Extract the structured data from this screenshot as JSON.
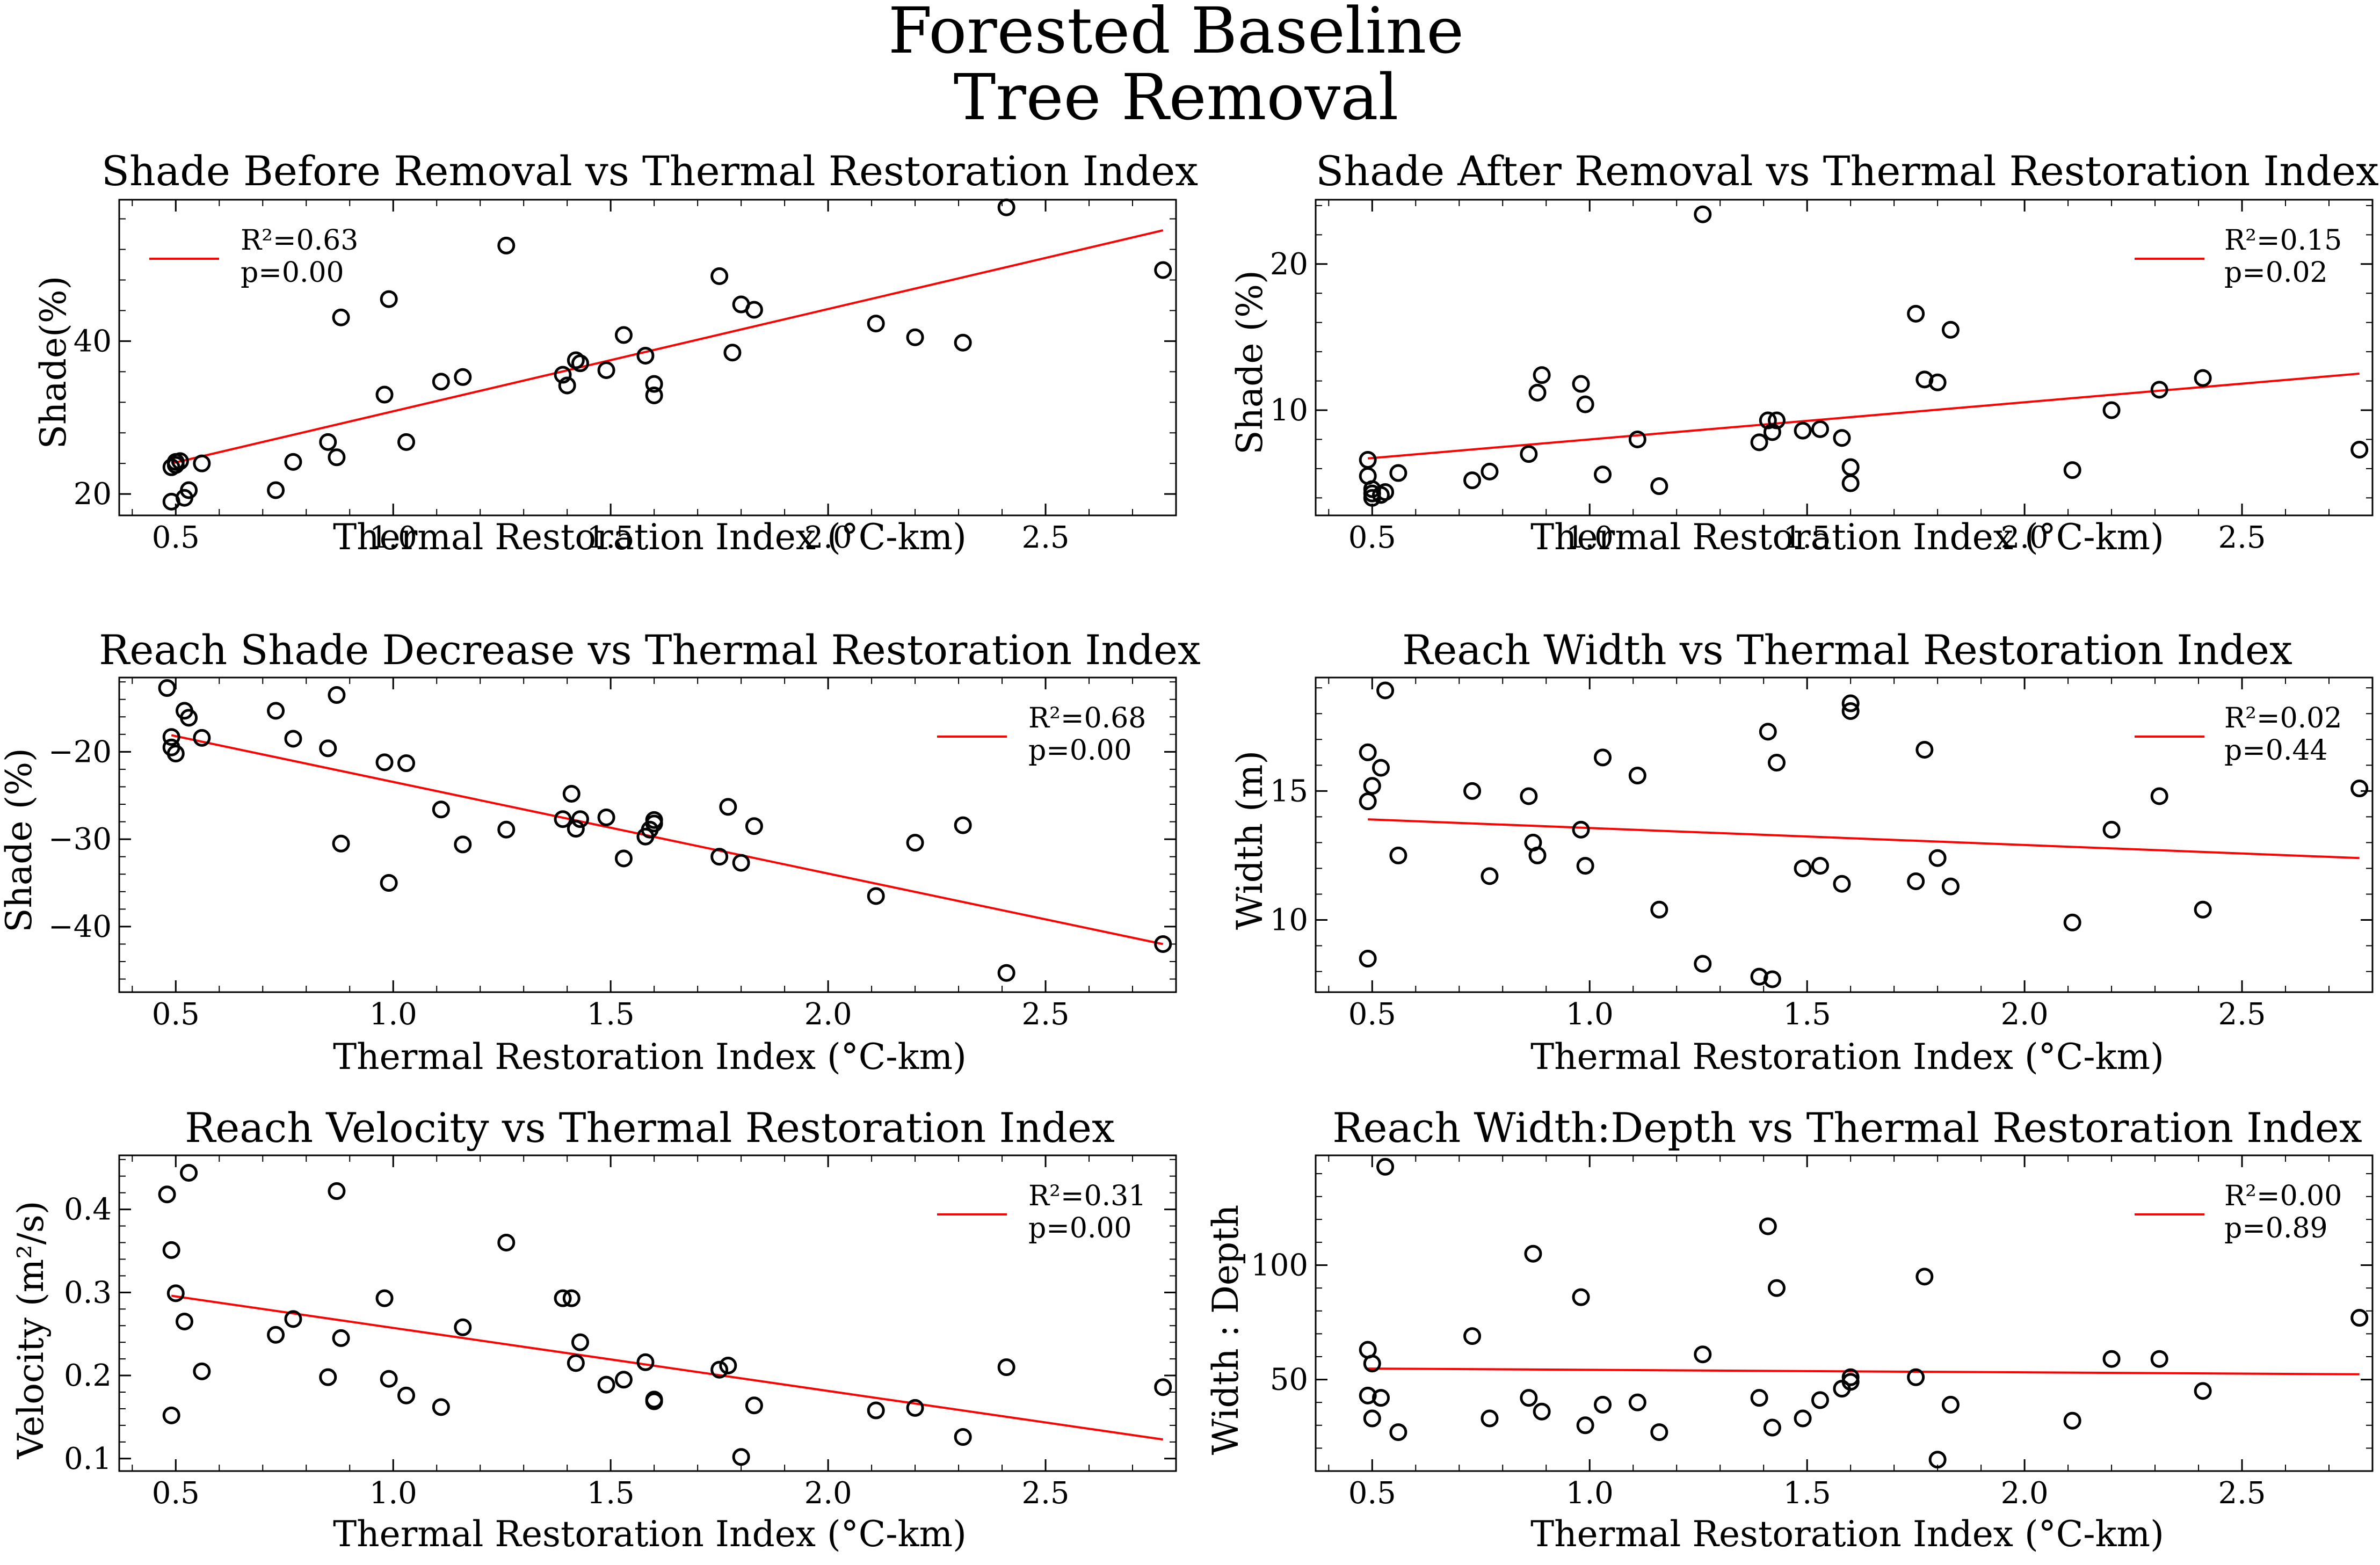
{
  "suptitle": [
    "Forested Baseline",
    "Tree Removal"
  ],
  "chart_data": [
    {
      "type": "scatter",
      "title": "Shade Before Removal vs Thermal Restoration Index",
      "xlabel": "Thermal Restoration Index (°C-km)",
      "ylabel": "Shade(%)",
      "xlim": [
        0.37,
        2.8
      ],
      "ylim": [
        17.2,
        58.5
      ],
      "xticks": [
        0.5,
        1.0,
        1.5,
        2.0,
        2.5
      ],
      "yticks": [
        20,
        40
      ],
      "legend": "upper-left",
      "fit": {
        "label": "R²=0.63",
        "p": "p=0.00",
        "x": [
          0.49,
          2.77
        ],
        "y": [
          24.0,
          54.5
        ]
      },
      "points": [
        [
          0.49,
          19
        ],
        [
          0.49,
          23.5
        ],
        [
          0.5,
          23.8
        ],
        [
          0.5,
          24.2
        ],
        [
          0.51,
          24.3
        ],
        [
          0.52,
          19.5
        ],
        [
          0.53,
          20.5
        ],
        [
          0.56,
          24
        ],
        [
          0.73,
          20.5
        ],
        [
          0.77,
          24.2
        ],
        [
          0.85,
          26.8
        ],
        [
          0.87,
          24.8
        ],
        [
          0.88,
          43.1
        ],
        [
          0.98,
          33
        ],
        [
          0.99,
          45.5
        ],
        [
          1.03,
          26.8
        ],
        [
          1.11,
          34.7
        ],
        [
          1.16,
          35.3
        ],
        [
          1.26,
          52.5
        ],
        [
          1.39,
          35.6
        ],
        [
          1.4,
          34.2
        ],
        [
          1.42,
          37.5
        ],
        [
          1.43,
          37.1
        ],
        [
          1.49,
          36.2
        ],
        [
          1.53,
          40.8
        ],
        [
          1.58,
          38.1
        ],
        [
          1.6,
          34.4
        ],
        [
          1.6,
          32.9
        ],
        [
          1.75,
          48.5
        ],
        [
          1.78,
          38.5
        ],
        [
          1.8,
          44.8
        ],
        [
          1.83,
          44.1
        ],
        [
          2.11,
          42.3
        ],
        [
          2.2,
          40.5
        ],
        [
          2.31,
          39.8
        ],
        [
          2.41,
          57.5
        ],
        [
          2.77,
          49.3
        ]
      ]
    },
    {
      "type": "scatter",
      "title": "Shade After Removal  vs Thermal Restoration Index",
      "xlabel": "Thermal Restoration Index (°C-km)",
      "ylabel": "Shade (%)",
      "xlim": [
        0.37,
        2.8
      ],
      "ylim": [
        2.8,
        24.4
      ],
      "xticks": [
        0.5,
        1.0,
        1.5,
        2.0,
        2.5
      ],
      "yticks": [
        10,
        20
      ],
      "legend": "upper-right",
      "fit": {
        "label": "R²=0.15",
        "p": "p=0.02",
        "x": [
          0.49,
          2.77
        ],
        "y": [
          6.7,
          12.5
        ]
      },
      "points": [
        [
          0.49,
          6.6
        ],
        [
          0.49,
          5.5
        ],
        [
          0.5,
          4.3
        ],
        [
          0.5,
          4.6
        ],
        [
          0.5,
          4.0
        ],
        [
          0.52,
          4.2
        ],
        [
          0.53,
          4.4
        ],
        [
          0.56,
          5.7
        ],
        [
          0.73,
          5.2
        ],
        [
          0.77,
          5.8
        ],
        [
          0.86,
          7.0
        ],
        [
          0.88,
          11.2
        ],
        [
          0.89,
          12.4
        ],
        [
          0.98,
          11.8
        ],
        [
          0.99,
          10.4
        ],
        [
          1.03,
          5.6
        ],
        [
          1.11,
          8.0
        ],
        [
          1.16,
          4.8
        ],
        [
          1.26,
          23.4
        ],
        [
          1.39,
          7.8
        ],
        [
          1.41,
          9.3
        ],
        [
          1.42,
          8.5
        ],
        [
          1.43,
          9.3
        ],
        [
          1.49,
          8.6
        ],
        [
          1.53,
          8.7
        ],
        [
          1.58,
          8.1
        ],
        [
          1.6,
          6.1
        ],
        [
          1.6,
          5.0
        ],
        [
          1.75,
          16.6
        ],
        [
          1.77,
          12.1
        ],
        [
          1.8,
          11.9
        ],
        [
          1.83,
          15.5
        ],
        [
          2.11,
          5.9
        ],
        [
          2.2,
          10.0
        ],
        [
          2.31,
          11.4
        ],
        [
          2.41,
          12.2
        ],
        [
          2.77,
          7.3
        ]
      ]
    },
    {
      "type": "scatter",
      "title": "Reach Shade Decrease vs Thermal Restoration Index",
      "xlabel": "Thermal Restoration Index (°C-km)",
      "ylabel": "Shade (%)",
      "xlim": [
        0.37,
        2.8
      ],
      "ylim": [
        -47.5,
        -11.5
      ],
      "xticks": [
        0.5,
        1.0,
        1.5,
        2.0,
        2.5
      ],
      "yticks": [
        -40,
        -30,
        -20
      ],
      "legend": "upper-right",
      "fit": {
        "label": "R²=0.68",
        "p": "p=0.00",
        "x": [
          0.49,
          2.77
        ],
        "y": [
          -18.1,
          -42.0
        ]
      },
      "points": [
        [
          0.48,
          -12.7
        ],
        [
          0.49,
          -18.3
        ],
        [
          0.49,
          -19.5
        ],
        [
          0.5,
          -20.2
        ],
        [
          0.52,
          -15.3
        ],
        [
          0.53,
          -16.1
        ],
        [
          0.56,
          -18.4
        ],
        [
          0.73,
          -15.3
        ],
        [
          0.77,
          -18.5
        ],
        [
          0.85,
          -19.6
        ],
        [
          0.87,
          -13.5
        ],
        [
          0.88,
          -30.5
        ],
        [
          0.98,
          -21.2
        ],
        [
          0.99,
          -35.0
        ],
        [
          1.03,
          -21.3
        ],
        [
          1.11,
          -26.6
        ],
        [
          1.16,
          -30.6
        ],
        [
          1.26,
          -28.9
        ],
        [
          1.39,
          -27.7
        ],
        [
          1.41,
          -24.8
        ],
        [
          1.42,
          -28.8
        ],
        [
          1.43,
          -27.7
        ],
        [
          1.49,
          -27.5
        ],
        [
          1.53,
          -32.2
        ],
        [
          1.58,
          -29.7
        ],
        [
          1.59,
          -28.9
        ],
        [
          1.6,
          -27.8
        ],
        [
          1.6,
          -28.2
        ],
        [
          1.75,
          -32.0
        ],
        [
          1.77,
          -26.3
        ],
        [
          1.8,
          -32.7
        ],
        [
          1.83,
          -28.5
        ],
        [
          2.11,
          -36.5
        ],
        [
          2.2,
          -30.4
        ],
        [
          2.31,
          -28.4
        ],
        [
          2.41,
          -45.3
        ],
        [
          2.77,
          -42.0
        ]
      ]
    },
    {
      "type": "scatter",
      "title": "Reach Width vs Thermal Restoration Index",
      "xlabel": "Thermal Restoration Index (°C-km)",
      "ylabel": "Width (m)",
      "xlim": [
        0.37,
        2.8
      ],
      "ylim": [
        7.2,
        19.4
      ],
      "xticks": [
        0.5,
        1.0,
        1.5,
        2.0,
        2.5
      ],
      "yticks": [
        10,
        15
      ],
      "legend": "upper-right",
      "fit": {
        "label": "R²=0.02",
        "p": "p=0.44",
        "x": [
          0.49,
          2.77
        ],
        "y": [
          13.9,
          12.4
        ]
      },
      "points": [
        [
          0.49,
          8.5
        ],
        [
          0.49,
          16.5
        ],
        [
          0.49,
          14.6
        ],
        [
          0.5,
          15.2
        ],
        [
          0.52,
          15.9
        ],
        [
          0.53,
          18.9
        ],
        [
          0.56,
          12.5
        ],
        [
          0.73,
          15.0
        ],
        [
          0.77,
          11.7
        ],
        [
          0.86,
          14.8
        ],
        [
          0.87,
          13.0
        ],
        [
          0.88,
          12.5
        ],
        [
          0.98,
          13.5
        ],
        [
          0.99,
          12.1
        ],
        [
          1.03,
          16.3
        ],
        [
          1.11,
          15.6
        ],
        [
          1.16,
          10.4
        ],
        [
          1.26,
          8.3
        ],
        [
          1.39,
          7.8
        ],
        [
          1.41,
          17.3
        ],
        [
          1.42,
          7.7
        ],
        [
          1.43,
          16.1
        ],
        [
          1.49,
          12.0
        ],
        [
          1.53,
          12.1
        ],
        [
          1.58,
          11.4
        ],
        [
          1.6,
          18.4
        ],
        [
          1.6,
          18.1
        ],
        [
          1.75,
          11.5
        ],
        [
          1.77,
          16.6
        ],
        [
          1.8,
          12.4
        ],
        [
          1.83,
          11.3
        ],
        [
          2.11,
          9.9
        ],
        [
          2.2,
          13.5
        ],
        [
          2.31,
          14.8
        ],
        [
          2.41,
          10.4
        ],
        [
          2.77,
          15.1
        ]
      ]
    },
    {
      "type": "scatter",
      "title": "Reach Velocity vs Thermal Restoration Index",
      "xlabel": "Thermal Restoration Index (°C-km)",
      "ylabel": "Velocity (m²/s)",
      "xlim": [
        0.37,
        2.8
      ],
      "ylim": [
        0.085,
        0.465
      ],
      "xticks": [
        0.5,
        1.0,
        1.5,
        2.0,
        2.5
      ],
      "yticks": [
        0.1,
        0.2,
        0.3,
        0.4
      ],
      "legend": "upper-right",
      "fit": {
        "label": "R²=0.31",
        "p": "p=0.00",
        "x": [
          0.49,
          2.77
        ],
        "y": [
          0.296,
          0.123
        ]
      },
      "points": [
        [
          0.48,
          0.418
        ],
        [
          0.49,
          0.351
        ],
        [
          0.49,
          0.152
        ],
        [
          0.5,
          0.299
        ],
        [
          0.52,
          0.265
        ],
        [
          0.53,
          0.444
        ],
        [
          0.56,
          0.205
        ],
        [
          0.73,
          0.249
        ],
        [
          0.77,
          0.268
        ],
        [
          0.85,
          0.198
        ],
        [
          0.87,
          0.422
        ],
        [
          0.88,
          0.245
        ],
        [
          0.98,
          0.293
        ],
        [
          0.99,
          0.196
        ],
        [
          1.03,
          0.176
        ],
        [
          1.11,
          0.162
        ],
        [
          1.16,
          0.258
        ],
        [
          1.26,
          0.36
        ],
        [
          1.39,
          0.293
        ],
        [
          1.41,
          0.293
        ],
        [
          1.42,
          0.215
        ],
        [
          1.43,
          0.24
        ],
        [
          1.49,
          0.189
        ],
        [
          1.53,
          0.195
        ],
        [
          1.58,
          0.216
        ],
        [
          1.6,
          0.171
        ],
        [
          1.6,
          0.169
        ],
        [
          1.75,
          0.207
        ],
        [
          1.77,
          0.212
        ],
        [
          1.8,
          0.102
        ],
        [
          1.83,
          0.164
        ],
        [
          2.11,
          0.158
        ],
        [
          2.2,
          0.161
        ],
        [
          2.31,
          0.126
        ],
        [
          2.41,
          0.21
        ],
        [
          2.77,
          0.186
        ]
      ]
    },
    {
      "type": "scatter",
      "title": "Reach Width:Depth vs Thermal Restoration Index",
      "xlabel": "Thermal Restoration Index (°C-km)",
      "ylabel": "Width : Depth",
      "xlim": [
        0.37,
        2.8
      ],
      "ylim": [
        10,
        148
      ],
      "xticks": [
        0.5,
        1.0,
        1.5,
        2.0,
        2.5
      ],
      "yticks": [
        50,
        100
      ],
      "legend": "upper-right",
      "fit": {
        "label": "R²=0.00",
        "p": "p=0.89",
        "x": [
          0.49,
          2.77
        ],
        "y": [
          54.8,
          52.3
        ]
      },
      "points": [
        [
          0.49,
          63
        ],
        [
          0.49,
          43
        ],
        [
          0.5,
          57
        ],
        [
          0.5,
          33
        ],
        [
          0.52,
          42
        ],
        [
          0.53,
          143
        ],
        [
          0.56,
          27
        ],
        [
          0.73,
          69
        ],
        [
          0.77,
          33
        ],
        [
          0.86,
          42
        ],
        [
          0.87,
          105
        ],
        [
          0.89,
          36
        ],
        [
          0.98,
          86
        ],
        [
          0.99,
          30
        ],
        [
          1.03,
          39
        ],
        [
          1.11,
          40
        ],
        [
          1.16,
          27
        ],
        [
          1.26,
          61
        ],
        [
          1.39,
          42
        ],
        [
          1.41,
          117
        ],
        [
          1.42,
          29
        ],
        [
          1.43,
          90
        ],
        [
          1.49,
          33
        ],
        [
          1.53,
          41
        ],
        [
          1.58,
          46
        ],
        [
          1.6,
          49
        ],
        [
          1.6,
          51
        ],
        [
          1.75,
          51
        ],
        [
          1.77,
          95
        ],
        [
          1.8,
          15
        ],
        [
          1.83,
          39
        ],
        [
          2.11,
          32
        ],
        [
          2.2,
          59
        ],
        [
          2.31,
          59
        ],
        [
          2.41,
          45
        ],
        [
          2.77,
          77
        ]
      ]
    }
  ]
}
